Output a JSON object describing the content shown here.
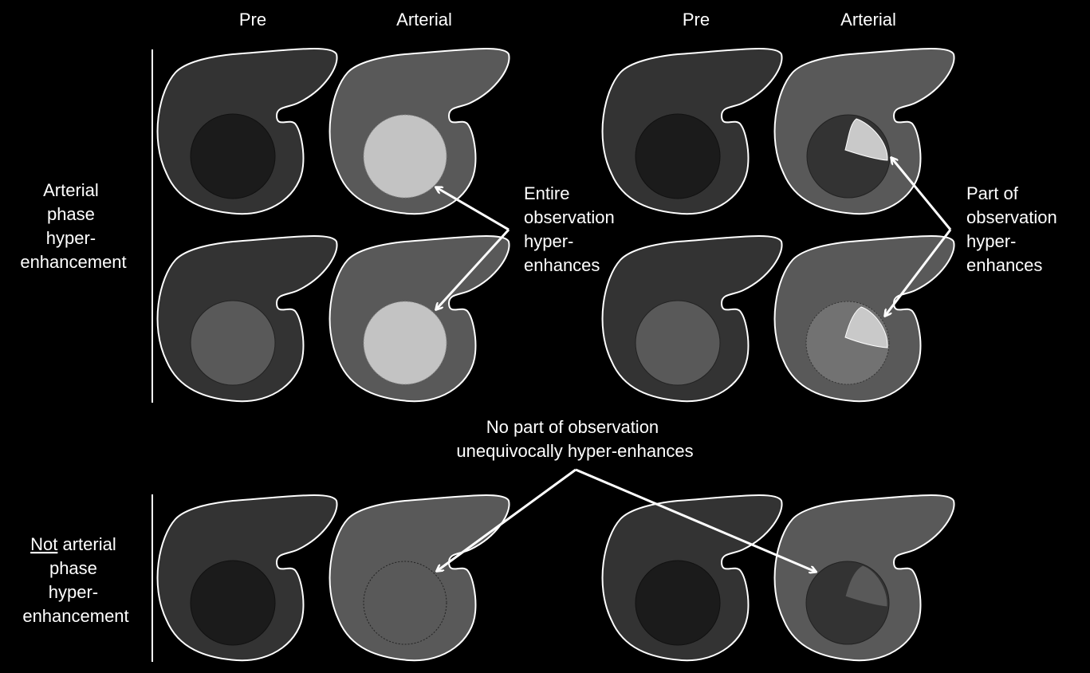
{
  "columns": {
    "pre_left": "Pre",
    "arterial_left": "Arterial",
    "pre_right": "Pre",
    "arterial_right": "Arterial"
  },
  "row_labels": {
    "aphe": [
      "Arterial",
      "phase",
      "hyper-",
      "enhancement"
    ],
    "not_aphe_underlined": "Not",
    "not_aphe_rest": " arterial",
    "not_aphe_lines": [
      "phase",
      "hyper-",
      "enhancement"
    ]
  },
  "annotations": {
    "entire": [
      "Entire",
      "observation",
      "hyper-",
      "enhances"
    ],
    "part": [
      "Part of",
      "observation",
      "hyper-",
      "enhances"
    ],
    "no_part": [
      "No part of observation",
      "unequivocally hyper-enhances"
    ]
  },
  "colors": {
    "background": "#000000",
    "liver_pre": "#333333",
    "liver_arterial": "#595959",
    "lesion_dark": "#1b1b1b",
    "lesion_mid": "#595959",
    "lesion_bright": "#c3c3c3",
    "lesion_wedge": "#c9c9c9",
    "outline": "#ffffff"
  }
}
